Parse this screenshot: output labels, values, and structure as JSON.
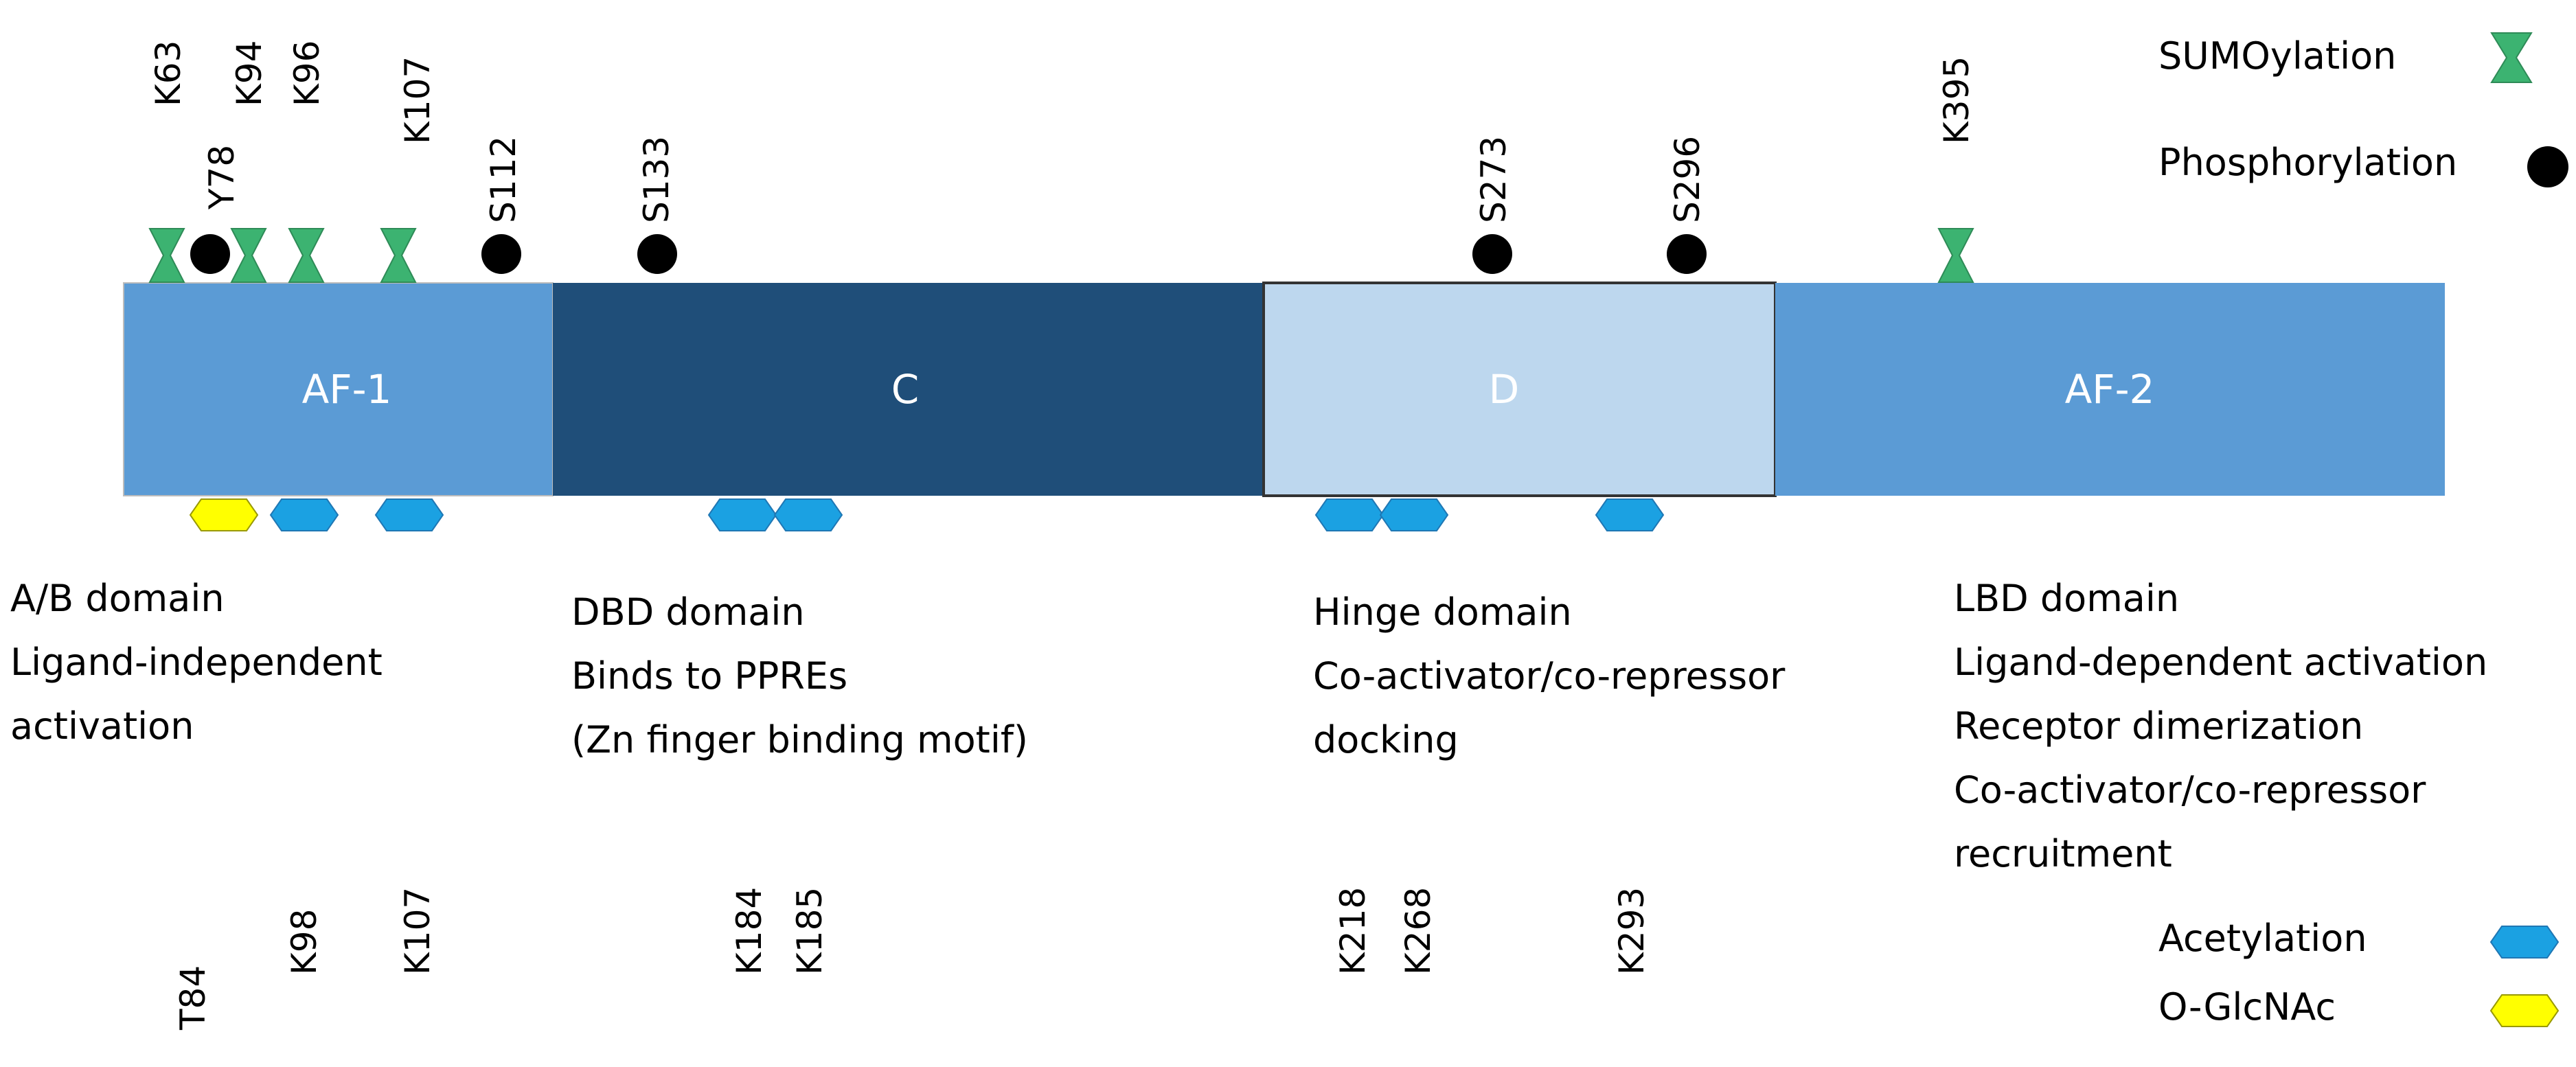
{
  "colors": {
    "af_segment": "#5b9bd5",
    "dbd_segment": "#1f4e79",
    "hinge_segment": "#bdd7ee",
    "sumoylation": "#3cb371",
    "phosphorylation": "#000000",
    "acetylation": "#1ba1e2",
    "o_glcnac": "#ffff00"
  },
  "segments": [
    {
      "label": "AF-1"
    },
    {
      "label": "C"
    },
    {
      "label": "D"
    },
    {
      "label": "AF-2"
    }
  ],
  "top_sites": {
    "sumoylation": [
      "K63",
      "K94",
      "K96",
      "K107",
      "K395"
    ],
    "phosphorylation": [
      "Y78",
      "S112",
      "S133",
      "S273",
      "S296"
    ]
  },
  "bottom_sites": {
    "acetylation": [
      "K98",
      "K107",
      "K184",
      "K185",
      "K218",
      "K268",
      "K293"
    ],
    "o_glcnac": [
      "T84"
    ]
  },
  "descriptions": [
    {
      "lines": [
        "A/B domain",
        "Ligand-independent",
        "activation"
      ]
    },
    {
      "lines": [
        "DBD domain",
        "Binds to PPREs",
        "(Zn finger binding motif)"
      ]
    },
    {
      "lines": [
        "Hinge domain",
        "Co-activator/co-repressor",
        "docking"
      ]
    },
    {
      "lines": [
        "LBD domain",
        "Ligand-dependent activation",
        "Receptor dimerization",
        "Co-activator/co-repressor",
        "recruitment"
      ]
    }
  ],
  "legend": {
    "sumoylation": {
      "label": "SUMOylation",
      "icon": "hourglass-icon"
    },
    "phosphorylation": {
      "label": "Phosphorylation",
      "icon": "circle-icon"
    },
    "acetylation": {
      "label": "Acetylation",
      "icon": "hexagon-icon"
    },
    "o_glcnac": {
      "label": "O-GlcNAc",
      "icon": "hexagon-icon"
    }
  }
}
